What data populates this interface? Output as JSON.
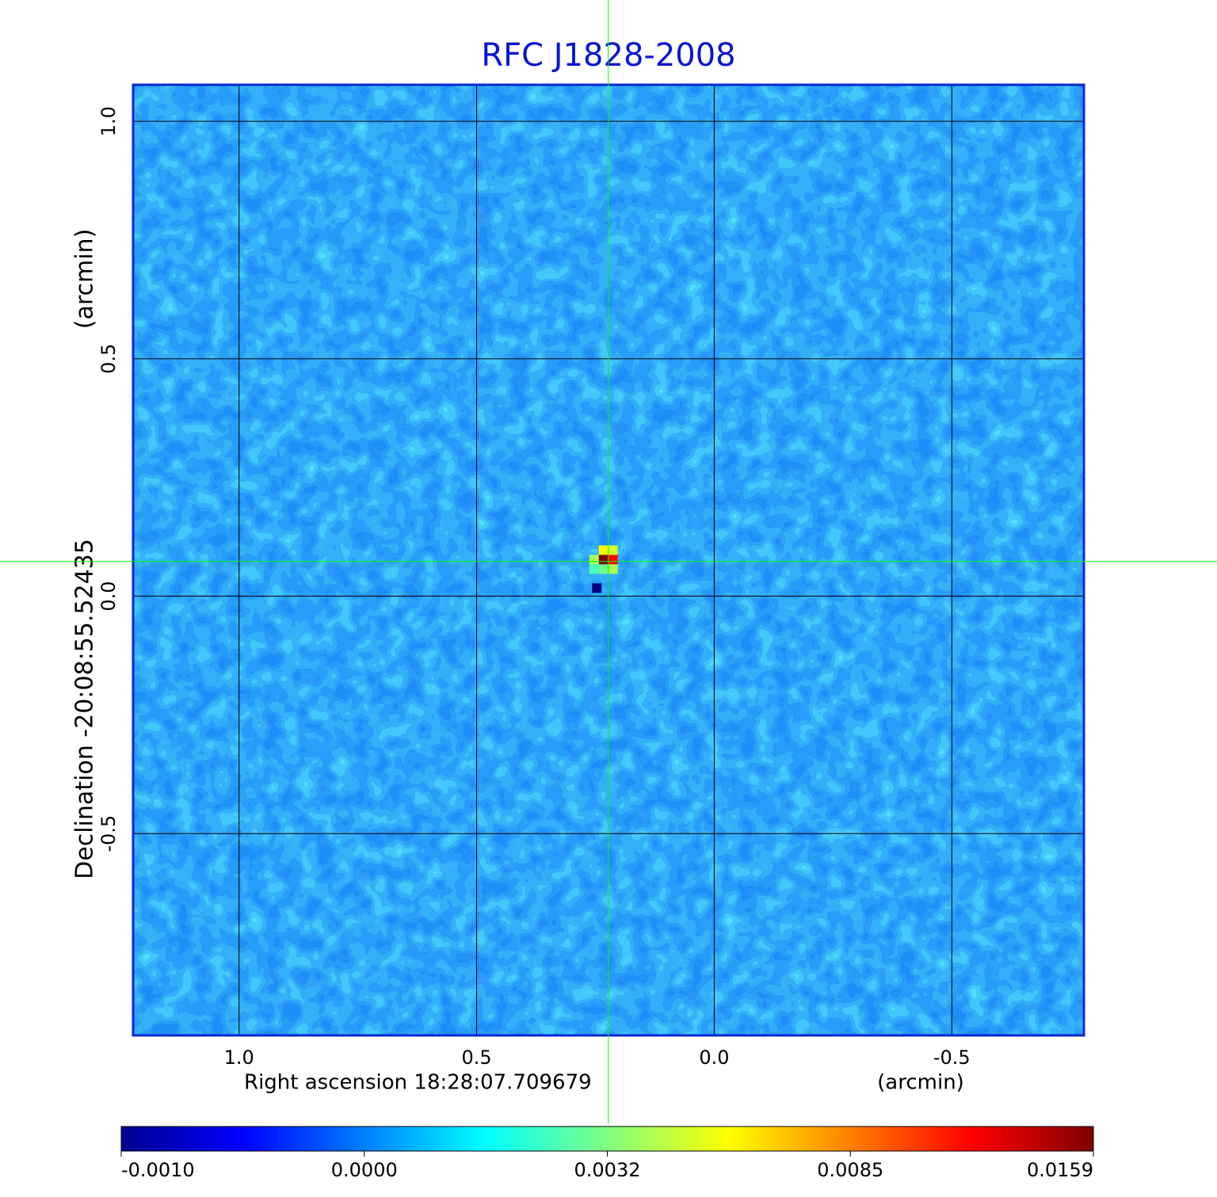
{
  "chart_data": {
    "type": "image",
    "title": "RFC J1828-2008",
    "xlabel": "Right ascension  18:28:07.709679",
    "xunit": "(arcmin)",
    "ylabel": "Declination  -20:08:55.52435",
    "yunit": "(arcmin)",
    "xlim": [
      1.223,
      -0.778
    ],
    "ylim": [
      -0.925,
      1.077
    ],
    "xticks": [
      {
        "value": 1,
        "label": "1.0"
      },
      0.5,
      {
        "value": 0,
        "label": "0.0"
      },
      -0.5
    ],
    "yticks": [
      {
        "value": 1,
        "label": "1.0"
      },
      0.5,
      {
        "value": 0,
        "label": "0.0"
      },
      -0.5
    ],
    "grid": true,
    "crosshair": {
      "x": 0.223,
      "y": 0.073,
      "color": "#00ff00"
    },
    "colormap": "jet",
    "colorbar_ticks": [
      {
        "value": -0.001,
        "label": "-0.0010"
      },
      {
        "value": 0,
        "label": "0.0000"
      },
      {
        "value": 0.0032,
        "label": "0.0032"
      },
      {
        "value": 0.0085,
        "label": "0.0085"
      },
      {
        "value": 0.0159,
        "label": "0.0159"
      }
    ],
    "source_pixels": [
      {
        "x": 0.233,
        "y": 0.077,
        "value": 0.0159
      },
      {
        "x": 0.213,
        "y": 0.077,
        "value": 0.012
      },
      {
        "x": 0.233,
        "y": 0.097,
        "value": 0.006
      },
      {
        "x": 0.213,
        "y": 0.097,
        "value": 0.005
      },
      {
        "x": 0.253,
        "y": 0.077,
        "value": 0.004
      },
      {
        "x": 0.233,
        "y": 0.057,
        "value": 0.003
      },
      {
        "x": 0.253,
        "y": 0.057,
        "value": 0.0025
      },
      {
        "x": 0.213,
        "y": 0.057,
        "value": 0.004
      },
      {
        "x": 0.247,
        "y": 0.017,
        "value": -0.001
      }
    ]
  }
}
